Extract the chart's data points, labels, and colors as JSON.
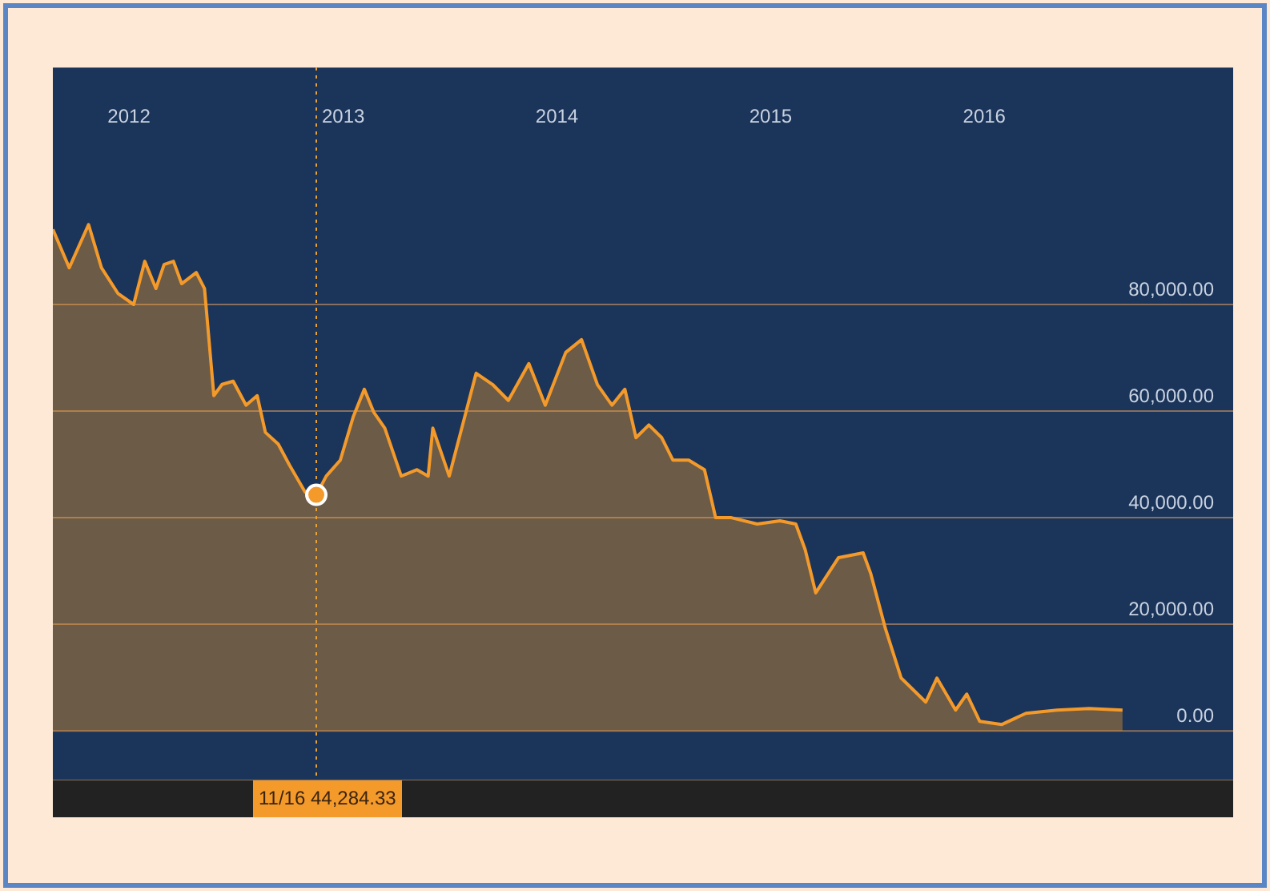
{
  "chart_data": {
    "type": "area",
    "x": [
      "2011-08-24",
      "2011-09-21",
      "2011-10-24",
      "2011-11-15",
      "2011-12-13",
      "2012-01-09",
      "2012-01-28",
      "2012-02-16",
      "2012-03-01",
      "2012-03-17",
      "2012-03-31",
      "2012-04-25",
      "2012-05-09",
      "2012-05-25",
      "2012-06-08",
      "2012-06-27",
      "2012-07-19",
      "2012-08-07",
      "2012-08-21",
      "2012-09-12",
      "2012-10-01",
      "2012-10-28",
      "2012-11-16",
      "2012-12-03",
      "2012-12-27",
      "2013-01-18",
      "2013-02-06",
      "2013-02-22",
      "2013-03-13",
      "2013-04-10",
      "2013-05-07",
      "2013-05-26",
      "2013-06-03",
      "2013-07-01",
      "2013-08-16",
      "2013-09-13",
      "2013-10-10",
      "2013-11-14",
      "2013-12-12",
      "2014-01-16",
      "2014-02-12",
      "2014-03-11",
      "2014-04-05",
      "2014-04-27",
      "2014-05-16",
      "2014-06-07",
      "2014-06-29",
      "2014-07-18",
      "2014-08-14",
      "2014-09-10",
      "2014-09-29",
      "2014-10-26",
      "2014-12-09",
      "2015-01-17",
      "2015-02-13",
      "2015-03-01",
      "2015-03-19",
      "2015-04-27",
      "2015-06-08",
      "2015-06-21",
      "2015-07-16",
      "2015-08-12",
      "2015-09-23",
      "2015-10-12",
      "2015-11-13",
      "2015-12-02",
      "2015-12-24",
      "2016-01-31",
      "2016-03-12",
      "2016-05-04",
      "2016-06-28",
      "2016-08-24"
    ],
    "series": [
      {
        "color": "#f39a2b",
        "values": [
          94100,
          86900,
          95000,
          86900,
          82100,
          80000,
          88100,
          83000,
          87500,
          88100,
          83900,
          86000,
          83000,
          62900,
          65000,
          65600,
          61100,
          62900,
          56000,
          53800,
          49900,
          44800,
          44284.33,
          47800,
          50800,
          58900,
          64100,
          59800,
          56800,
          47800,
          49000,
          47800,
          56800,
          47800,
          67100,
          65000,
          62000,
          68900,
          61100,
          71000,
          73400,
          65000,
          61100,
          64100,
          55000,
          57400,
          55000,
          50800,
          50800,
          49000,
          40000,
          40000,
          38800,
          39400,
          38800,
          34000,
          25900,
          32500,
          33400,
          29500,
          19200,
          9900,
          5400,
          9900,
          3900,
          6900,
          1800,
          1200,
          3300,
          3900,
          4200,
          3900
        ]
      }
    ],
    "xlim": [
      "2011-08-24",
      "2017-03-01"
    ],
    "xticks": [
      {
        "value": "2012-01-01",
        "label": "2012"
      },
      {
        "value": "2013-01-01",
        "label": "2013"
      },
      {
        "value": "2014-01-01",
        "label": "2014"
      },
      {
        "value": "2015-01-01",
        "label": "2015"
      },
      {
        "value": "2016-01-01",
        "label": "2016"
      }
    ],
    "ylim": [
      -9300,
      124500
    ],
    "yticks": [
      {
        "value": 0,
        "label": "0.00"
      },
      {
        "value": 20000,
        "label": "20,000.00"
      },
      {
        "value": 40000,
        "label": "40,000.00"
      },
      {
        "value": 60000,
        "label": "60,000.00"
      },
      {
        "value": 80000,
        "label": "80,000.00"
      }
    ],
    "grid": "y",
    "marker": "none",
    "ref_lines": [
      {
        "axis": "x",
        "value": "2012-11-16",
        "color": "#e8a23c",
        "line_style": "dotted"
      }
    ],
    "annotations": [
      "11/16 44,284.33"
    ]
  }
}
